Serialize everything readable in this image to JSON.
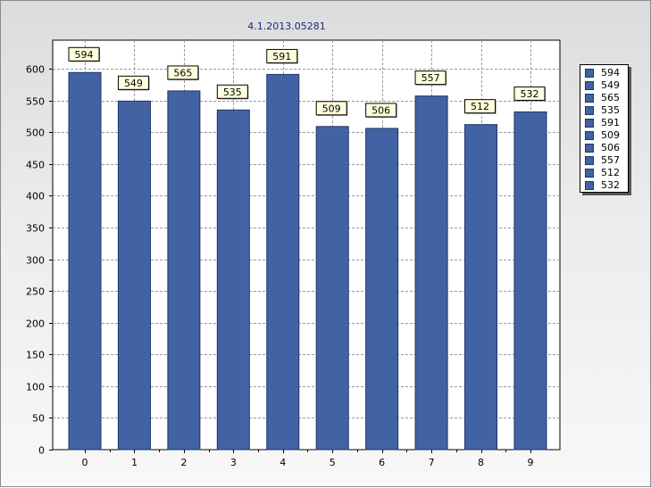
{
  "chart_data": {
    "type": "bar",
    "title": "4.1.2013.05281",
    "categories": [
      "0",
      "1",
      "2",
      "3",
      "4",
      "5",
      "6",
      "7",
      "8",
      "9"
    ],
    "values": [
      594,
      549,
      565,
      535,
      591,
      509,
      506,
      557,
      512,
      532
    ],
    "ylim": [
      0,
      600
    ],
    "yticks": [
      0,
      50,
      100,
      150,
      200,
      250,
      300,
      350,
      400,
      450,
      500,
      550,
      600
    ],
    "ymax_axis": 645,
    "grid": true,
    "data_labels": true,
    "legend_position": "right",
    "legend": [
      "594",
      "549",
      "565",
      "535",
      "591",
      "509",
      "506",
      "557",
      "512",
      "532"
    ],
    "bar_color": "#4263a3"
  }
}
